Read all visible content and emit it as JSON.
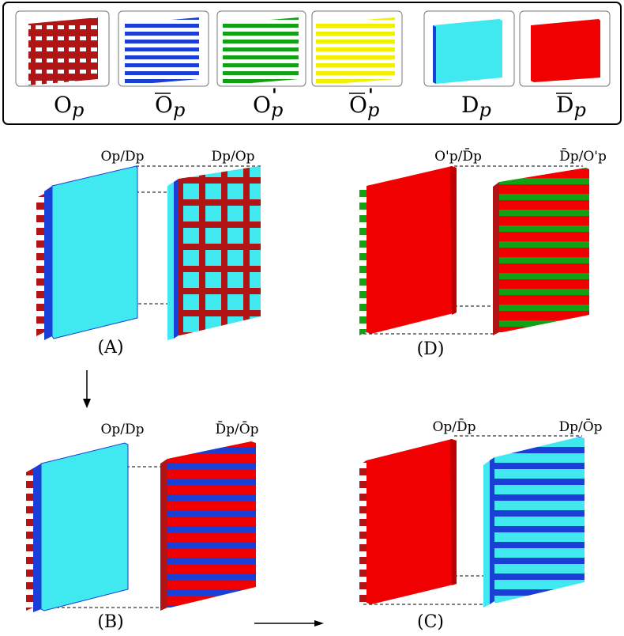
{
  "colors": {
    "dark_red": "#b01414",
    "blue": "#1a3ed6",
    "green": "#14a014",
    "yellow": "#f0f000",
    "cyan": "#40e8f0",
    "red": "#f00000"
  },
  "legend": [
    {
      "base": "O",
      "sub": "p",
      "bar": false,
      "prime": false,
      "pattern": "grid",
      "color_key": "dark_red"
    },
    {
      "base": "O",
      "sub": "p",
      "bar": true,
      "prime": false,
      "pattern": "stripes",
      "color_key": "blue"
    },
    {
      "base": "O",
      "sub": "p",
      "bar": false,
      "prime": true,
      "pattern": "stripes",
      "color_key": "green"
    },
    {
      "base": "O",
      "sub": "p",
      "bar": true,
      "prime": true,
      "pattern": "stripes",
      "color_key": "yellow"
    },
    {
      "base": "D",
      "sub": "p",
      "bar": false,
      "prime": false,
      "pattern": "solid",
      "color_key": "cyan"
    },
    {
      "base": "D",
      "sub": "p",
      "bar": true,
      "prime": false,
      "pattern": "solid",
      "color_key": "red"
    }
  ],
  "panels": [
    {
      "id": "A",
      "caption": "(A)",
      "front_label": "Op/Dp",
      "back_label": "Dp/Op"
    },
    {
      "id": "D",
      "caption": "(D)",
      "front_label": "O'p/D̄p",
      "back_label": "D̄p/O'p"
    },
    {
      "id": "B",
      "caption": "(B)",
      "front_label": "Op/Dp",
      "back_label": "D̄p/Ōp"
    },
    {
      "id": "C",
      "caption": "(C)",
      "front_label": "Op/D̄p",
      "back_label": "Dp/Ōp"
    }
  ]
}
